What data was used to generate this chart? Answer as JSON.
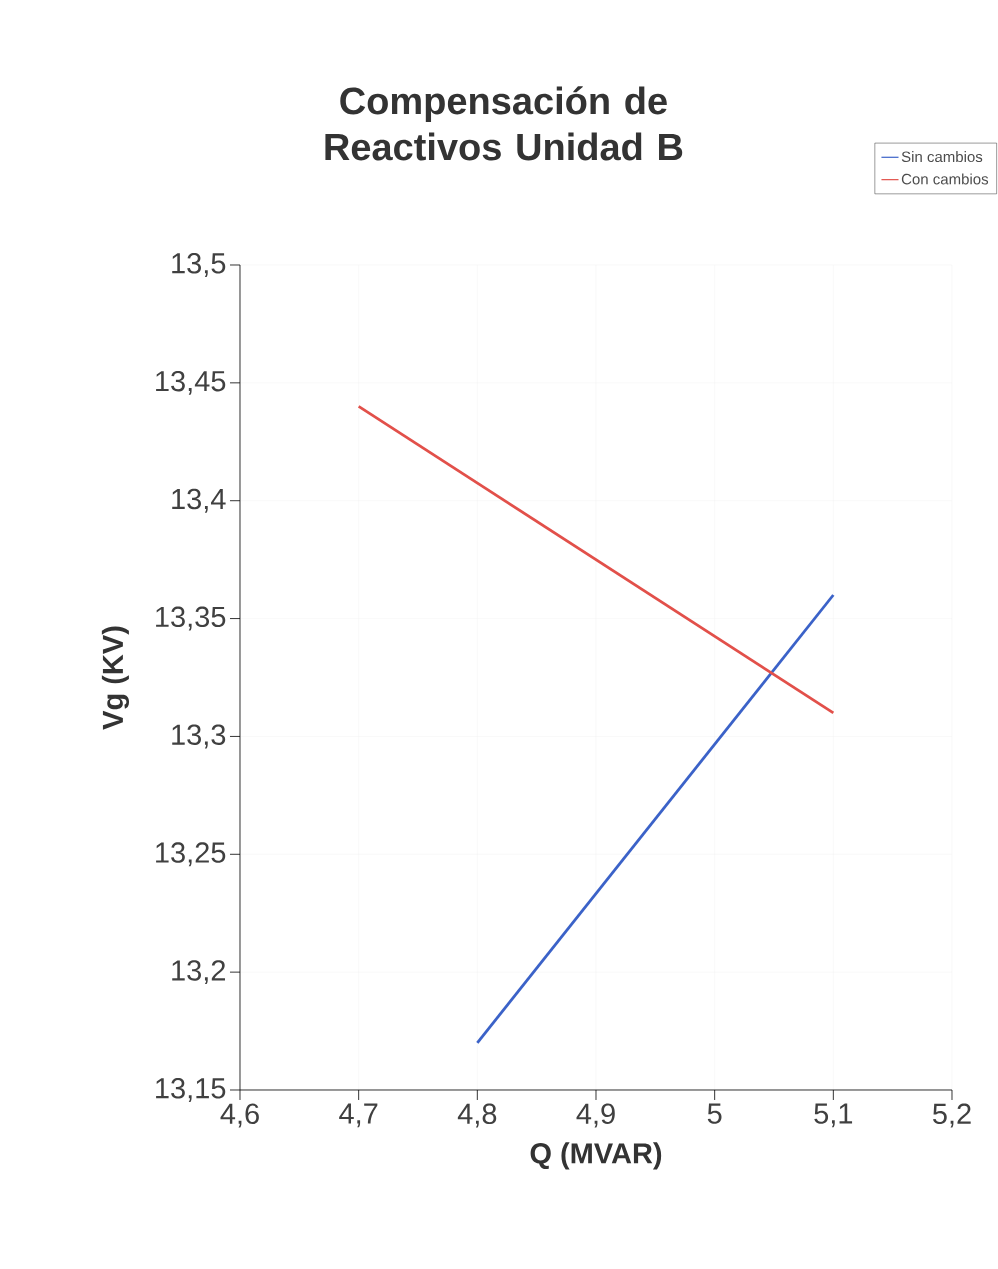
{
  "chart_data": {
    "type": "line",
    "title": "Compensación de Reactivos Unidad B",
    "xlabel": "Q (MVAR)",
    "ylabel": "Vg (KV)",
    "series": [
      {
        "name": "Sin cambios",
        "color": "#3b62c8",
        "x": [
          4.8,
          5.1
        ],
        "values": [
          13.17,
          13.36
        ]
      },
      {
        "name": "Con cambios",
        "color": "#e2504a",
        "x": [
          4.7,
          5.1
        ],
        "values": [
          13.44,
          13.31
        ]
      }
    ],
    "xlim": [
      4.6,
      5.2
    ],
    "xticks": [
      {
        "value": 4.6,
        "label": "4,6"
      },
      {
        "value": 4.7,
        "label": "4,7"
      },
      {
        "value": 4.8,
        "label": "4,8"
      },
      {
        "value": 4.9,
        "label": "4,9"
      },
      {
        "value": 5,
        "label": "5"
      },
      {
        "value": 5.1,
        "label": "5,1"
      },
      {
        "value": 5.2,
        "label": "5,2"
      }
    ],
    "ylim": [
      13.15,
      13.5
    ],
    "yticks": [
      {
        "value": 13.15,
        "label": "13,15"
      },
      {
        "value": 13.2,
        "label": "13,2"
      },
      {
        "value": 13.25,
        "label": "13,25"
      },
      {
        "value": 13.3,
        "label": "13,3"
      },
      {
        "value": 13.35,
        "label": "13,35"
      },
      {
        "value": 13.4,
        "label": "13,4"
      },
      {
        "value": 13.45,
        "label": "13,45"
      },
      {
        "value": 13.5,
        "label": "13,5"
      }
    ],
    "grid": true,
    "legend": "top right",
    "marker": "none",
    "line_style": "solid"
  }
}
